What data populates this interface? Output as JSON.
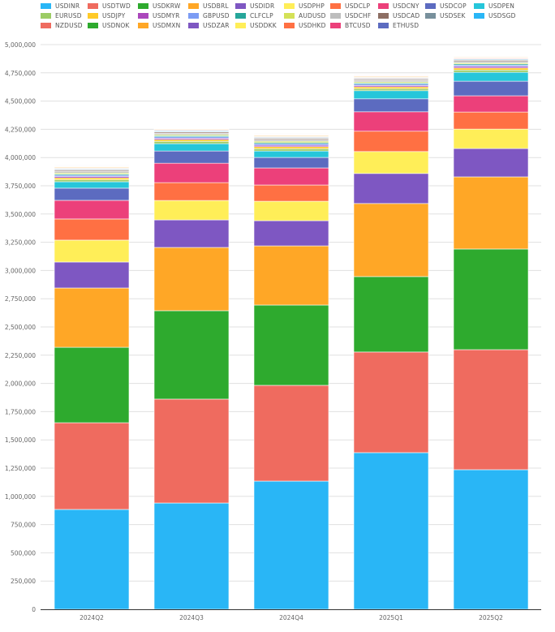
{
  "chart_data": {
    "type": "bar",
    "stacked": true,
    "title": "",
    "xlabel": "",
    "ylabel": "",
    "ylim": [
      0,
      5000000
    ],
    "yticks": [
      0,
      250000,
      500000,
      750000,
      1000000,
      1250000,
      1500000,
      1750000,
      2000000,
      2250000,
      2500000,
      2750000,
      3000000,
      3250000,
      3500000,
      3750000,
      4000000,
      4250000,
      4500000,
      4750000,
      5000000
    ],
    "ytick_labels": [
      "0",
      "250,000",
      "500,000",
      "750,000",
      "1,000,000",
      "1,250,000",
      "1,500,000",
      "1,750,000",
      "2,000,000",
      "2,250,000",
      "2,500,000",
      "2,750,000",
      "3,000,000",
      "3,250,000",
      "3,500,000",
      "3,750,000",
      "4,000,000",
      "4,250,000",
      "4,500,000",
      "4,750,000",
      "5,000,000"
    ],
    "grid": true,
    "legend_position": "top",
    "categories": [
      "2024Q2",
      "2024Q3",
      "2024Q4",
      "2025Q1",
      "2025Q2"
    ],
    "series": [
      {
        "name": "USDINR",
        "color": "#29b6f6",
        "values": [
          884000,
          941000,
          1135000,
          1387000,
          1236000
        ]
      },
      {
        "name": "USDTWD",
        "color": "#ef6b5f",
        "values": [
          768000,
          920000,
          848000,
          891000,
          1063000
        ]
      },
      {
        "name": "USDKRW",
        "color": "#2eaa2e",
        "values": [
          668000,
          783000,
          711000,
          668000,
          891000
        ]
      },
      {
        "name": "USDBRL",
        "color": "#ffa726",
        "values": [
          525000,
          560000,
          524000,
          647000,
          639000
        ]
      },
      {
        "name": "USDIDR",
        "color": "#7e57c2",
        "values": [
          230000,
          244000,
          223000,
          266000,
          251000
        ]
      },
      {
        "name": "USDPHP",
        "color": "#ffee58",
        "values": [
          194000,
          172000,
          172000,
          194000,
          172000
        ]
      },
      {
        "name": "USDCLP",
        "color": "#ff7043",
        "values": [
          187000,
          158000,
          144000,
          180000,
          151000
        ]
      },
      {
        "name": "USDCNY",
        "color": "#ec407a",
        "values": [
          165000,
          172000,
          151000,
          172000,
          144000
        ]
      },
      {
        "name": "USDCOP",
        "color": "#5c6bc0",
        "values": [
          108000,
          108000,
          93000,
          115000,
          129000
        ]
      },
      {
        "name": "USDPEN",
        "color": "#26c6da",
        "values": [
          57000,
          65000,
          57000,
          72000,
          79000
        ]
      },
      {
        "name": "EURUSD",
        "color": "#9ccc65",
        "values": [
          18000,
          20000,
          20000,
          18000,
          20000
        ]
      },
      {
        "name": "USDJPY",
        "color": "#ffca28",
        "values": [
          16000,
          16000,
          18000,
          16000,
          18000
        ]
      },
      {
        "name": "USDMYR",
        "color": "#ab47bc",
        "values": [
          12000,
          12000,
          12000,
          12000,
          14000
        ]
      },
      {
        "name": "GBPUSD",
        "color": "#7c9cf4",
        "values": [
          12000,
          12000,
          14000,
          12000,
          12000
        ]
      },
      {
        "name": "CLFCLP",
        "color": "#26a69a",
        "values": [
          10000,
          10000,
          10000,
          10000,
          10000
        ]
      },
      {
        "name": "AUDUSD",
        "color": "#d4e157",
        "values": [
          10000,
          10000,
          12000,
          10000,
          10000
        ]
      },
      {
        "name": "USDCHF",
        "color": "#bdbdbd",
        "values": [
          12000,
          12000,
          12000,
          12000,
          12000
        ]
      },
      {
        "name": "USDCAD",
        "color": "#8d6e63",
        "values": [
          10000,
          10000,
          10000,
          8000,
          10000
        ]
      },
      {
        "name": "USDSEK",
        "color": "#78909c",
        "values": [
          6000,
          6000,
          6000,
          6000,
          6000
        ]
      },
      {
        "name": "USDSGD",
        "color": "#29b6f6",
        "values": [
          6000,
          6000,
          6000,
          6000,
          6000
        ]
      },
      {
        "name": "NZDUSD",
        "color": "#ef6b5f",
        "values": [
          6000,
          6000,
          6000,
          6000,
          6000
        ]
      },
      {
        "name": "USDNOK",
        "color": "#2eaa2e",
        "values": [
          4000,
          4000,
          4000,
          4000,
          4000
        ]
      },
      {
        "name": "USDMXN",
        "color": "#ffa726",
        "values": [
          6000,
          6000,
          6000,
          6000,
          6000
        ]
      },
      {
        "name": "USDZAR",
        "color": "#7e57c2",
        "values": [
          4000,
          4000,
          4000,
          4000,
          4000
        ]
      },
      {
        "name": "USDDKK",
        "color": "#ffee58",
        "values": [
          4000,
          4000,
          4000,
          4000,
          4000
        ]
      },
      {
        "name": "USDHKD",
        "color": "#ff7043",
        "values": [
          4000,
          4000,
          4000,
          4000,
          4000
        ]
      },
      {
        "name": "BTCUSD",
        "color": "#ec407a",
        "values": [
          4000,
          4000,
          4000,
          4000,
          4000
        ]
      },
      {
        "name": "ETHUSD",
        "color": "#5c6bc0",
        "values": [
          4000,
          4000,
          4000,
          4000,
          4000
        ]
      }
    ]
  }
}
